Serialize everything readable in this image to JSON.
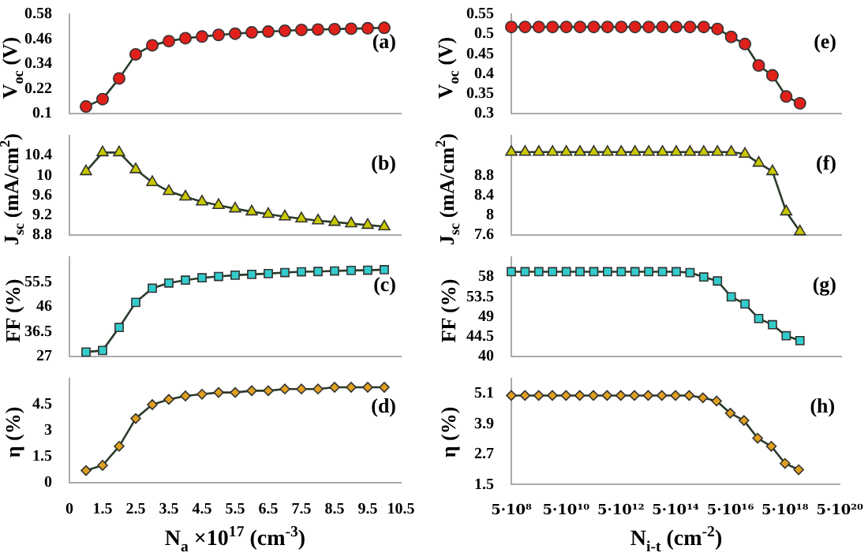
{
  "chart_data": [
    {
      "type": "line",
      "ylabel": "V$_{oc}$ (V)",
      "annotations": [
        "(a)"
      ],
      "marker": "circle",
      "color": "#e0201b",
      "tick_labels": "y",
      "x": [
        1,
        1.5,
        2,
        2.5,
        3,
        3.5,
        4,
        4.5,
        5,
        5.5,
        6,
        6.5,
        7,
        7.5,
        8,
        8.5,
        9,
        9.5,
        10
      ],
      "values": [
        0.134,
        0.17,
        0.27,
        0.386,
        0.43,
        0.45,
        0.464,
        0.472,
        0.48,
        0.486,
        0.492,
        0.496,
        0.5,
        0.504,
        0.506,
        0.508,
        0.51,
        0.512,
        0.514
      ],
      "xlim": [
        0.5,
        10.5
      ],
      "ylim": [
        0.1,
        0.58
      ],
      "yticks": [
        0.1,
        0.22,
        0.34,
        0.46,
        0.58
      ]
    },
    {
      "type": "line",
      "ylabel": "J$_{sc}$ (mA/cm$^{2}$)",
      "annotations": [
        "(b)"
      ],
      "marker": "triangle",
      "color": "#c8c800",
      "tick_labels": "y",
      "x": [
        1,
        1.5,
        2,
        2.5,
        3,
        3.5,
        4,
        4.5,
        5,
        5.5,
        6,
        6.5,
        7,
        7.5,
        8,
        8.5,
        9,
        9.5,
        10
      ],
      "values": [
        10.08,
        10.46,
        10.46,
        10.12,
        9.86,
        9.68,
        9.57,
        9.47,
        9.4,
        9.33,
        9.27,
        9.22,
        9.17,
        9.13,
        9.09,
        9.06,
        9.03,
        9.0,
        8.97
      ],
      "xlim": [
        0.5,
        10.5
      ],
      "ylim": [
        8.8,
        10.8
      ],
      "yticks": [
        8.8,
        9.2,
        9.6,
        10,
        10.4
      ]
    },
    {
      "type": "line",
      "ylabel": "FF (%)",
      "annotations": [
        "(c)"
      ],
      "marker": "square",
      "color": "#33cccc",
      "tick_labels": "y",
      "x": [
        1,
        1.5,
        2,
        2.5,
        3,
        3.5,
        4,
        4.5,
        5,
        5.5,
        6,
        6.5,
        7,
        7.5,
        8,
        8.5,
        9,
        9.5,
        10
      ],
      "values": [
        28.7,
        29.3,
        38.1,
        47.7,
        53.1,
        55.1,
        56.2,
        57.1,
        57.6,
        58.1,
        58.4,
        58.7,
        59.1,
        59.4,
        59.5,
        59.7,
        59.9,
        60.0,
        60.2
      ],
      "xlim": [
        0.5,
        10.5
      ],
      "ylim": [
        27,
        65
      ],
      "yticks": [
        27,
        36.5,
        46,
        55.5
      ]
    },
    {
      "type": "line",
      "ylabel": "η (%)",
      "xlabel": "N$_{a}$ ×10$^{17}$ (cm$^{-3}$)",
      "annotations": [
        "(d)"
      ],
      "marker": "diamond",
      "color": "#e0a020",
      "x": [
        1,
        1.5,
        2,
        2.5,
        3,
        3.5,
        4,
        4.5,
        5,
        5.5,
        6,
        6.5,
        7,
        7.5,
        8,
        8.5,
        9,
        9.5,
        10
      ],
      "values": [
        0.7,
        1.0,
        2.1,
        3.7,
        4.5,
        4.8,
        5.0,
        5.1,
        5.2,
        5.2,
        5.3,
        5.3,
        5.4,
        5.4,
        5.4,
        5.5,
        5.5,
        5.5,
        5.5
      ],
      "xlim": [
        0.5,
        10.5
      ],
      "xticks": [
        {
          "value": 0.5,
          "label": "0"
        },
        1.5,
        2.5,
        3.5,
        4.5,
        5.5,
        6.5,
        7.5,
        8.5,
        9.5,
        10.5
      ],
      "ylim": [
        0,
        6
      ],
      "yticks": [
        0,
        1.5,
        3,
        4.5
      ]
    },
    {
      "type": "line",
      "ylabel": "V$_{oc}$ (V)",
      "annotations": [
        "(e)"
      ],
      "marker": "circle",
      "color": "#e0201b",
      "tick_labels": "y",
      "log": "x",
      "x": [
        500000000.0,
        1580000000.0,
        5000000000.0,
        15800000000.0,
        50000000000.0,
        158000000000.0,
        500000000000.0,
        1580000000000.0,
        5000000000000.0,
        15800000000000.0,
        50000000000000.0,
        158000000000000.0,
        500000000000000.0,
        1580000000000000.0,
        5000000000000000.0,
        1.58e+16,
        5e+16,
        1.58e+17,
        5e+17,
        1.58e+18,
        5e+18,
        1.58e+19
      ],
      "values": [
        0.518,
        0.518,
        0.518,
        0.518,
        0.518,
        0.518,
        0.518,
        0.518,
        0.518,
        0.518,
        0.518,
        0.518,
        0.518,
        0.518,
        0.518,
        0.513,
        0.493,
        0.475,
        0.421,
        0.396,
        0.343,
        0.326
      ],
      "xlim": [
        500000000.0,
        5e+20
      ],
      "ylim": [
        0.3,
        0.55
      ],
      "yticks": [
        0.3,
        0.35,
        0.4,
        0.45,
        0.5,
        0.55
      ]
    },
    {
      "type": "line",
      "ylabel": "J$_{sc}$ (mA/cm$^{2}$)",
      "annotations": [
        "(f)"
      ],
      "marker": "triangle",
      "color": "#c8c800",
      "tick_labels": "y",
      "log": "x",
      "x": [
        500000000.0,
        1580000000.0,
        5000000000.0,
        15800000000.0,
        50000000000.0,
        158000000000.0,
        500000000000.0,
        1580000000000.0,
        5000000000000.0,
        15800000000000.0,
        50000000000000.0,
        158000000000000.0,
        500000000000000.0,
        1580000000000000.0,
        5000000000000000.0,
        1.58e+16,
        5e+16,
        1.58e+17,
        5e+17,
        1.58e+18,
        5e+18,
        1.58e+19
      ],
      "values": [
        9.27,
        9.27,
        9.27,
        9.27,
        9.27,
        9.27,
        9.27,
        9.27,
        9.27,
        9.27,
        9.27,
        9.27,
        9.27,
        9.27,
        9.27,
        9.27,
        9.27,
        9.23,
        9.05,
        8.88,
        8.07,
        7.67
      ],
      "xlim": [
        500000000.0,
        5e+20
      ],
      "ylim": [
        7.6,
        9.6
      ],
      "yticks": [
        7.6,
        8,
        8.4,
        8.8
      ]
    },
    {
      "type": "line",
      "ylabel": "FF (%)",
      "annotations": [
        "(g)"
      ],
      "marker": "square",
      "color": "#33cccc",
      "tick_labels": "y",
      "log": "x",
      "x": [
        500000000.0,
        1580000000.0,
        5000000000.0,
        15800000000.0,
        50000000000.0,
        158000000000.0,
        500000000000.0,
        1580000000000.0,
        5000000000000.0,
        15800000000000.0,
        50000000000000.0,
        158000000000000.0,
        500000000000000.0,
        1580000000000000.0,
        5000000000000000.0,
        1.58e+16,
        5e+16,
        1.58e+17,
        5e+17,
        1.58e+18,
        5e+18,
        1.58e+19
      ],
      "values": [
        59.2,
        59.2,
        59.2,
        59.2,
        59.2,
        59.2,
        59.2,
        59.2,
        59.2,
        59.2,
        59.2,
        59.2,
        59.2,
        59.0,
        58.0,
        57.1,
        53.5,
        51.9,
        48.6,
        47.2,
        44.7,
        43.6
      ],
      "xlim": [
        500000000.0,
        5e+20
      ],
      "ylim": [
        40,
        62.5
      ],
      "yticks": [
        40,
        44.5,
        49,
        53.5,
        58
      ]
    },
    {
      "type": "line",
      "ylabel": "η (%)",
      "xlabel": "N$_{i-t}$ (cm$^{-2}$)",
      "annotations": [
        "(h)"
      ],
      "marker": "diamond",
      "color": "#e0a020",
      "log": "x",
      "x": [
        500000000.0,
        1580000000.0,
        5000000000.0,
        15800000000.0,
        50000000000.0,
        158000000000.0,
        500000000000.0,
        1580000000000.0,
        5000000000000.0,
        15800000000000.0,
        50000000000000.0,
        158000000000000.0,
        500000000000000.0,
        1580000000000000.0,
        5000000000000000.0,
        1.58e+16,
        5e+16,
        1.58e+17,
        5e+17,
        1.58e+18,
        5e+18,
        1.58e+19
      ],
      "values": [
        5.03,
        5.03,
        5.03,
        5.03,
        5.03,
        5.03,
        5.03,
        5.03,
        5.03,
        5.03,
        5.03,
        5.03,
        5.03,
        5.03,
        4.94,
        4.81,
        4.33,
        4.04,
        3.34,
        3.02,
        2.34,
        2.09
      ],
      "xlim": [
        500000000.0,
        5e+20
      ],
      "xticks": [
        {
          "value": 500000000.0,
          "label": "5·10⁸"
        },
        {
          "value": 50000000000.0,
          "label": "5·10¹⁰"
        },
        {
          "value": 5000000000000.0,
          "label": "5·10¹²"
        },
        {
          "value": 500000000000000.0,
          "label": "5·10¹⁴"
        },
        {
          "value": 5e+16,
          "label": "5·10¹⁶"
        },
        {
          "value": 5e+18,
          "label": "5·10¹⁸"
        },
        {
          "value": 5e+20,
          "label": "5·10²⁰"
        }
      ],
      "ylim": [
        1.5,
        5.7
      ],
      "yticks": [
        1.5,
        2.7,
        3.9,
        5.1
      ]
    }
  ]
}
